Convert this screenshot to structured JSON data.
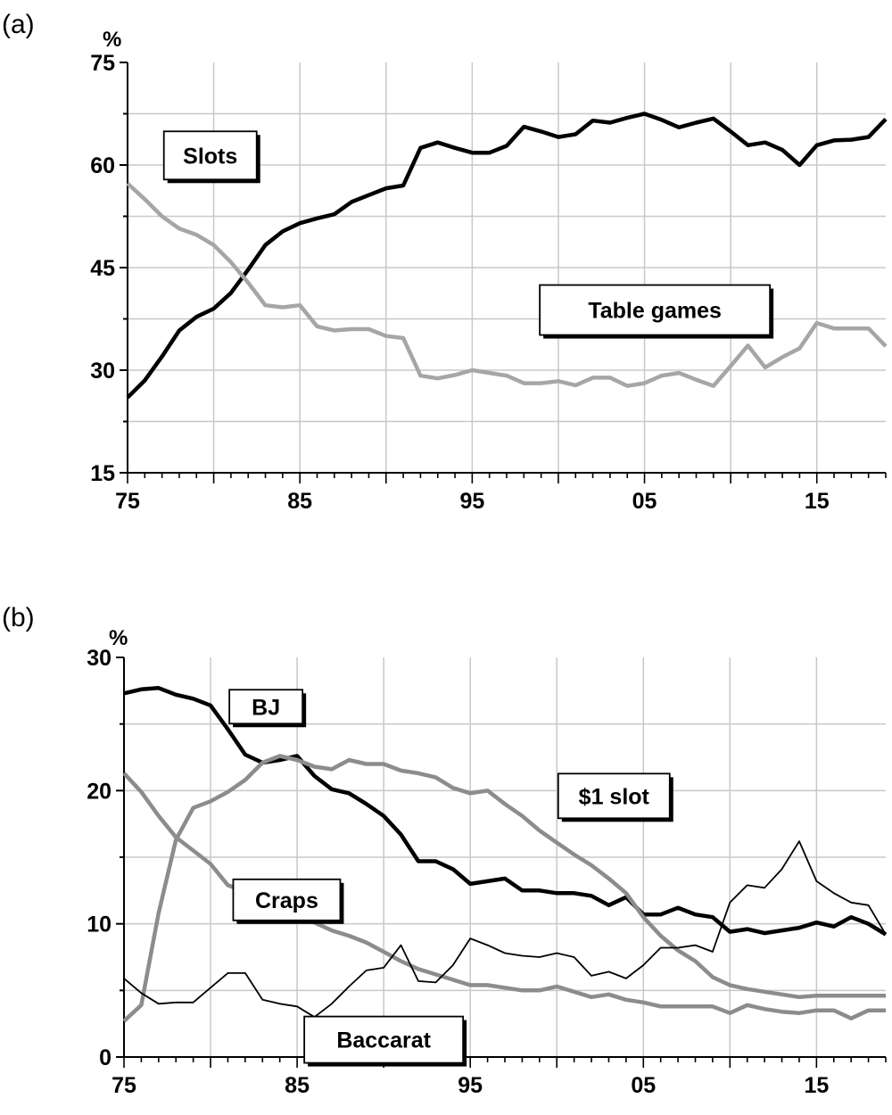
{
  "chart_data": [
    {
      "panel_label": "(a)",
      "type": "line",
      "unit": "%",
      "xlim": [
        1975,
        2019
      ],
      "ylim": [
        15,
        75
      ],
      "yticks": [
        15,
        30,
        45,
        60,
        75
      ],
      "xticks": [
        {
          "value": 1975,
          "label": "75"
        },
        {
          "value": 1985,
          "label": "85"
        },
        {
          "value": 1995,
          "label": "95"
        },
        {
          "value": 2005,
          "label": "05"
        },
        {
          "value": 2015,
          "label": "15"
        }
      ],
      "grid": true,
      "series": [
        {
          "name": "Slots",
          "color": "#000000",
          "width": 4.5,
          "x": [
            1975,
            1976,
            1977,
            1978,
            1979,
            1980,
            1981,
            1982,
            1983,
            1984,
            1985,
            1986,
            1987,
            1988,
            1989,
            1990,
            1991,
            1992,
            1993,
            1994,
            1995,
            1996,
            1997,
            1998,
            1999,
            2000,
            2001,
            2002,
            2003,
            2004,
            2005,
            2006,
            2007,
            2008,
            2009,
            2010,
            2011,
            2012,
            2013,
            2014,
            2015,
            2016,
            2017,
            2018,
            2019
          ],
          "values": [
            26,
            28.5,
            32,
            35.8,
            37.8,
            39,
            41.3,
            44.7,
            48.3,
            50.3,
            51.5,
            52.2,
            52.8,
            54.6,
            55.6,
            56.6,
            57,
            62.5,
            63.3,
            62.5,
            61.8,
            61.8,
            62.8,
            65.6,
            64.9,
            64.1,
            64.5,
            66.5,
            66.2,
            66.9,
            67.5,
            66.6,
            65.5,
            66.2,
            66.8,
            64.9,
            62.9,
            63.3,
            62.2,
            60,
            62.9,
            63.6,
            63.7,
            64.1,
            66.7
          ]
        },
        {
          "name": "Table games",
          "color": "#a6a6a6",
          "width": 4.5,
          "x": [
            1975,
            1976,
            1977,
            1978,
            1979,
            1980,
            1981,
            1982,
            1983,
            1984,
            1985,
            1986,
            1987,
            1988,
            1989,
            1990,
            1991,
            1992,
            1993,
            1994,
            1995,
            1996,
            1997,
            1998,
            1999,
            2000,
            2001,
            2002,
            2003,
            2004,
            2005,
            2006,
            2007,
            2008,
            2009,
            2010,
            2011,
            2012,
            2013,
            2014,
            2015,
            2016,
            2017,
            2018,
            2019
          ],
          "values": [
            57.3,
            55,
            52.5,
            50.7,
            49.8,
            48.3,
            45.8,
            42.8,
            39.5,
            39.2,
            39.5,
            36.4,
            35.8,
            36,
            36,
            35,
            34.7,
            29.2,
            28.8,
            29.3,
            30,
            29.6,
            29.2,
            28.1,
            28.1,
            28.4,
            27.8,
            28.9,
            28.9,
            27.7,
            28.1,
            29.2,
            29.6,
            28.6,
            27.7,
            30.6,
            33.6,
            30.4,
            31.9,
            33.2,
            36.9,
            36.1,
            36.1,
            36.1,
            33.5
          ]
        }
      ],
      "annotations": [
        {
          "text": "Slots",
          "x": 1979.8,
          "y": 61.4
        },
        {
          "text": "Table games",
          "x": 2005.6,
          "y": 38.8
        }
      ]
    },
    {
      "panel_label": "(b)",
      "type": "line",
      "unit": "%",
      "xlim": [
        1975,
        2019
      ],
      "ylim": [
        0,
        30
      ],
      "yticks": [
        0,
        10,
        20,
        30
      ],
      "xticks": [
        {
          "value": 1975,
          "label": "75"
        },
        {
          "value": 1985,
          "label": "85"
        },
        {
          "value": 1995,
          "label": "95"
        },
        {
          "value": 2005,
          "label": "05"
        },
        {
          "value": 2015,
          "label": "15"
        }
      ],
      "grid": true,
      "series": [
        {
          "name": "BJ",
          "color": "#000000",
          "width": 4.5,
          "x": [
            1975,
            1976,
            1977,
            1978,
            1979,
            1980,
            1981,
            1982,
            1983,
            1984,
            1985,
            1986,
            1987,
            1988,
            1989,
            1990,
            1991,
            1992,
            1993,
            1994,
            1995,
            1996,
            1997,
            1998,
            1999,
            2000,
            2001,
            2002,
            2003,
            2004,
            2005,
            2006,
            2007,
            2008,
            2009,
            2010,
            2011,
            2012,
            2013,
            2014,
            2015,
            2016,
            2017,
            2018,
            2019
          ],
          "values": [
            27.3,
            27.6,
            27.7,
            27.2,
            26.9,
            26.4,
            24.6,
            22.7,
            22.1,
            22.3,
            22.6,
            21.1,
            20.1,
            19.8,
            19,
            18.1,
            16.7,
            14.7,
            14.7,
            14.1,
            13,
            13.2,
            13.4,
            12.5,
            12.5,
            12.3,
            12.3,
            12.1,
            11.4,
            12,
            10.7,
            10.7,
            11.2,
            10.7,
            10.5,
            9.4,
            9.6,
            9.3,
            9.5,
            9.7,
            10.1,
            9.8,
            10.5,
            10,
            9.2
          ]
        },
        {
          "name": "$1 slot",
          "color": "#8c8c8c",
          "width": 4.5,
          "x": [
            1975,
            1976,
            1977,
            1978,
            1979,
            1980,
            1981,
            1982,
            1983,
            1984,
            1985,
            1986,
            1987,
            1988,
            1989,
            1990,
            1991,
            1992,
            1993,
            1994,
            1995,
            1996,
            1997,
            1998,
            1999,
            2000,
            2001,
            2002,
            2003,
            2004,
            2005,
            2006,
            2007,
            2008,
            2009,
            2010,
            2011,
            2012,
            2013,
            2014,
            2015,
            2016,
            2017,
            2018,
            2019
          ],
          "values": [
            2.7,
            3.9,
            10.8,
            16.3,
            18.7,
            19.2,
            19.9,
            20.8,
            22.1,
            22.6,
            22.3,
            21.8,
            21.6,
            22.3,
            22,
            22,
            21.5,
            21.3,
            21,
            20.2,
            19.8,
            20,
            19,
            18.1,
            17,
            16.1,
            15.2,
            14.4,
            13.4,
            12.3,
            10.5,
            9.1,
            8,
            7.2,
            6,
            5.4,
            5.1,
            4.9,
            4.7,
            4.5,
            4.6,
            4.6,
            4.6,
            4.6,
            4.6
          ]
        },
        {
          "name": "Craps",
          "color": "#8c8c8c",
          "width": 4.5,
          "x": [
            1975,
            1976,
            1977,
            1978,
            1979,
            1980,
            1981,
            1982,
            1983,
            1984,
            1985,
            1986,
            1987,
            1988,
            1989,
            1990,
            1991,
            1992,
            1993,
            1994,
            1995,
            1996,
            1997,
            1998,
            1999,
            2000,
            2001,
            2002,
            2003,
            2004,
            2005,
            2006,
            2007,
            2008,
            2009,
            2010,
            2011,
            2012,
            2013,
            2014,
            2015,
            2016,
            2017,
            2018,
            2019
          ],
          "values": [
            21.3,
            19.9,
            18.1,
            16.5,
            15.5,
            14.5,
            12.9,
            12.4,
            11.1,
            10.7,
            10.7,
            10.1,
            9.5,
            9.1,
            8.6,
            7.9,
            7.2,
            6.6,
            6.2,
            5.8,
            5.4,
            5.4,
            5.2,
            5,
            5,
            5.3,
            4.9,
            4.5,
            4.7,
            4.3,
            4.1,
            3.8,
            3.8,
            3.8,
            3.8,
            3.3,
            3.9,
            3.6,
            3.4,
            3.3,
            3.5,
            3.5,
            2.9,
            3.5,
            3.5
          ]
        },
        {
          "name": "Baccarat",
          "color": "#000000",
          "width": 1.8,
          "x": [
            1975,
            1976,
            1977,
            1978,
            1979,
            1980,
            1981,
            1982,
            1983,
            1984,
            1985,
            1986,
            1987,
            1988,
            1989,
            1990,
            1991,
            1992,
            1993,
            1994,
            1995,
            1996,
            1997,
            1998,
            1999,
            2000,
            2001,
            2002,
            2003,
            2004,
            2005,
            2006,
            2007,
            2008,
            2009,
            2010,
            2011,
            2012,
            2013,
            2014,
            2015,
            2016,
            2017,
            2018,
            2019
          ],
          "values": [
            5.9,
            4.8,
            4,
            4.1,
            4.1,
            5.2,
            6.3,
            6.3,
            4.3,
            4,
            3.8,
            3,
            4,
            5.3,
            6.5,
            6.7,
            8.4,
            5.7,
            5.6,
            6.9,
            8.9,
            8.4,
            7.8,
            7.6,
            7.5,
            7.8,
            7.5,
            6.1,
            6.4,
            5.9,
            6.9,
            8.2,
            8.2,
            8.4,
            7.9,
            11.6,
            12.9,
            12.7,
            14.1,
            16.2,
            13.2,
            12.3,
            11.6,
            11.4,
            9.2
          ]
        }
      ],
      "annotations": [
        {
          "text": "BJ",
          "x": 1983.2,
          "y": 26.3
        },
        {
          "text": "$1 slot",
          "x": 2003.3,
          "y": 19.6
        },
        {
          "text": "Craps",
          "x": 1984.4,
          "y": 11.8
        },
        {
          "text": "Baccarat",
          "x": 1990,
          "y": 1.3
        }
      ]
    }
  ]
}
